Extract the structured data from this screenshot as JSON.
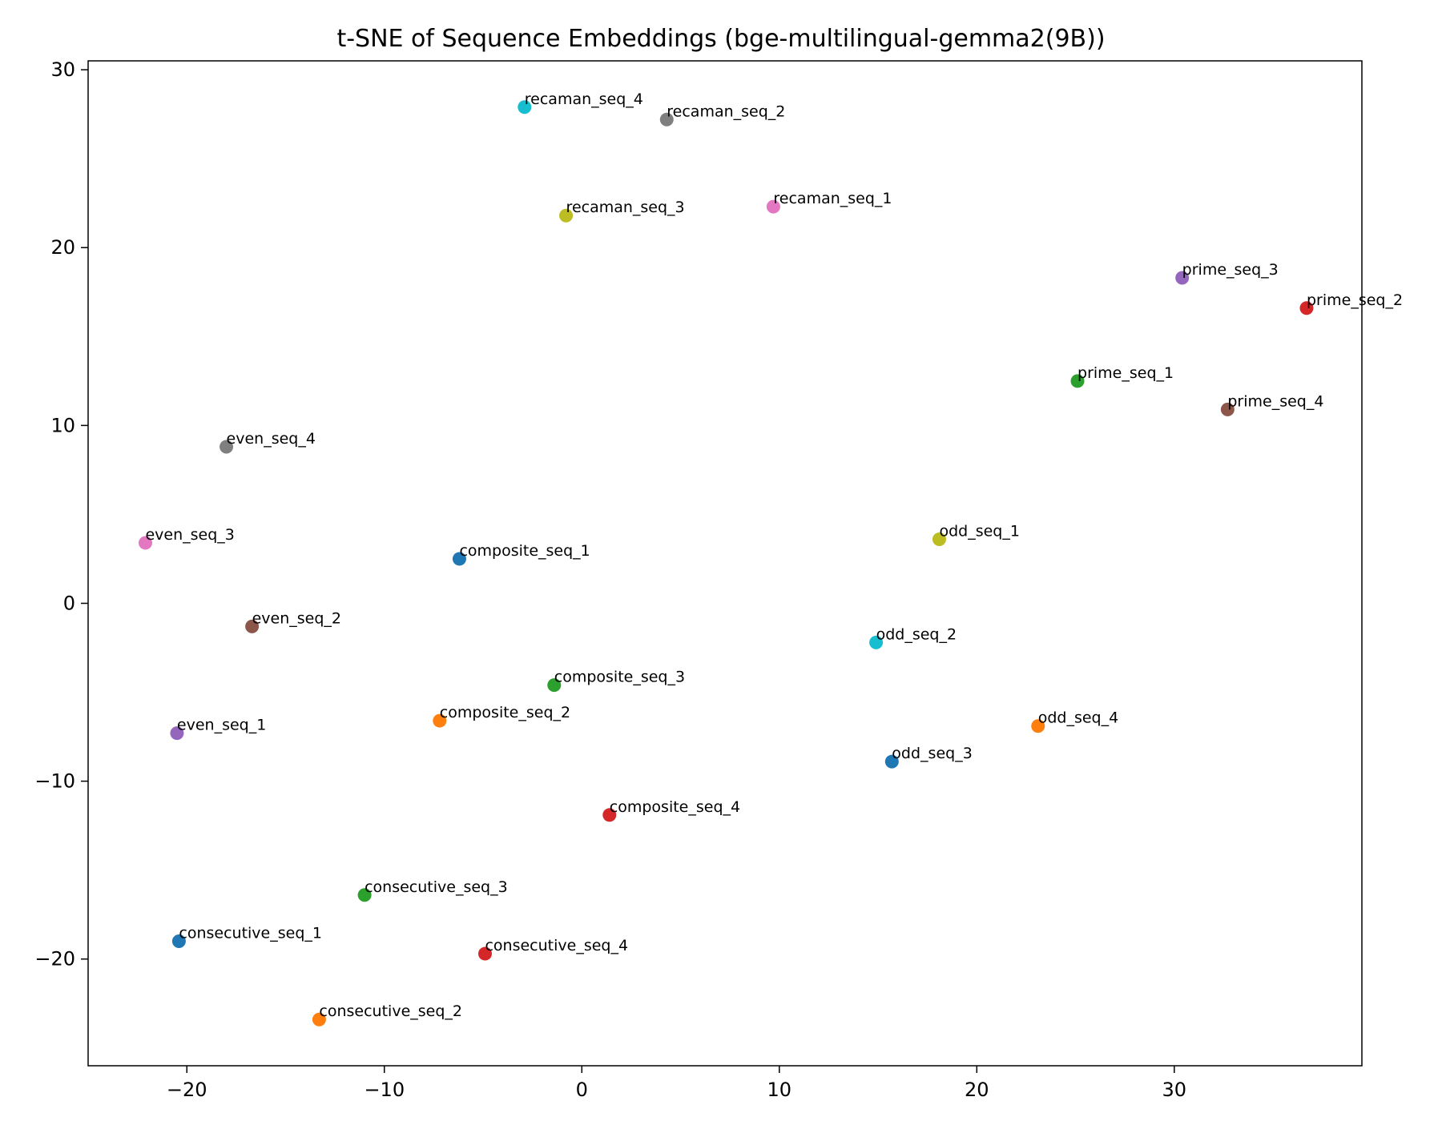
{
  "chart_data": {
    "type": "scatter",
    "title": "t-SNE of Sequence Embeddings (bge-multilingual-gemma2(9B))",
    "xlabel": "",
    "ylabel": "",
    "xlim": [
      -25,
      39.5
    ],
    "ylim": [
      -26,
      30.5
    ],
    "xticks": [
      -20,
      -10,
      0,
      10,
      20,
      30
    ],
    "yticks": [
      -20,
      -10,
      0,
      10,
      20,
      30
    ],
    "xtick_labels": [
      "−20",
      "−10",
      "0",
      "10",
      "20",
      "30"
    ],
    "ytick_labels": [
      "−20",
      "−10",
      "0",
      "10",
      "20",
      "30"
    ],
    "grid": false,
    "legend": "none",
    "points": [
      {
        "label": "recaman_seq_4",
        "x": -2.9,
        "y": 27.9,
        "color": "#17becf"
      },
      {
        "label": "recaman_seq_2",
        "x": 4.3,
        "y": 27.2,
        "color": "#7f7f7f"
      },
      {
        "label": "recaman_seq_3",
        "x": -0.8,
        "y": 21.8,
        "color": "#bcbd22"
      },
      {
        "label": "recaman_seq_1",
        "x": 9.7,
        "y": 22.3,
        "color": "#e377c2"
      },
      {
        "label": "prime_seq_3",
        "x": 30.4,
        "y": 18.3,
        "color": "#9467bd"
      },
      {
        "label": "prime_seq_2",
        "x": 36.7,
        "y": 16.6,
        "color": "#d62728"
      },
      {
        "label": "prime_seq_1",
        "x": 25.1,
        "y": 12.5,
        "color": "#2ca02c"
      },
      {
        "label": "prime_seq_4",
        "x": 32.7,
        "y": 10.9,
        "color": "#8c564b"
      },
      {
        "label": "even_seq_4",
        "x": -18.0,
        "y": 8.8,
        "color": "#7f7f7f"
      },
      {
        "label": "even_seq_3",
        "x": -22.1,
        "y": 3.4,
        "color": "#e377c2"
      },
      {
        "label": "composite_seq_1",
        "x": -6.2,
        "y": 2.5,
        "color": "#1f77b4"
      },
      {
        "label": "odd_seq_1",
        "x": 18.1,
        "y": 3.6,
        "color": "#bcbd22"
      },
      {
        "label": "even_seq_2",
        "x": -16.7,
        "y": -1.3,
        "color": "#8c564b"
      },
      {
        "label": "odd_seq_2",
        "x": 14.9,
        "y": -2.2,
        "color": "#17becf"
      },
      {
        "label": "composite_seq_3",
        "x": -1.4,
        "y": -4.6,
        "color": "#2ca02c"
      },
      {
        "label": "composite_seq_2",
        "x": -7.2,
        "y": -6.6,
        "color": "#ff7f0e"
      },
      {
        "label": "odd_seq_4",
        "x": 23.1,
        "y": -6.9,
        "color": "#ff7f0e"
      },
      {
        "label": "even_seq_1",
        "x": -20.5,
        "y": -7.3,
        "color": "#9467bd"
      },
      {
        "label": "odd_seq_3",
        "x": 15.7,
        "y": -8.9,
        "color": "#1f77b4"
      },
      {
        "label": "composite_seq_4",
        "x": 1.4,
        "y": -11.9,
        "color": "#d62728"
      },
      {
        "label": "consecutive_seq_3",
        "x": -11.0,
        "y": -16.4,
        "color": "#2ca02c"
      },
      {
        "label": "consecutive_seq_1",
        "x": -20.4,
        "y": -19.0,
        "color": "#1f77b4"
      },
      {
        "label": "consecutive_seq_4",
        "x": -4.9,
        "y": -19.7,
        "color": "#d62728"
      },
      {
        "label": "consecutive_seq_2",
        "x": -13.3,
        "y": -23.4,
        "color": "#ff7f0e"
      }
    ]
  }
}
